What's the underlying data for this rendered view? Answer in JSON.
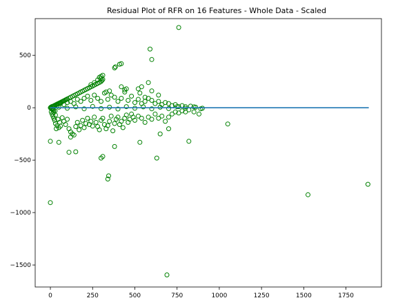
{
  "chart_data": {
    "type": "scatter",
    "title": "Residual Plot of RFR on 16 Features - Whole Data - Scaled",
    "xlabel": "",
    "ylabel": "",
    "xlim": [
      -90,
      1960
    ],
    "ylim": [
      -1710,
      850
    ],
    "x_ticks": [
      0,
      250,
      500,
      750,
      1000,
      1250,
      1500,
      1750
    ],
    "y_ticks": [
      500,
      0,
      -500,
      -1000,
      -1500
    ],
    "grid": false,
    "point_color": "#008000",
    "line_color": "#1f77b4",
    "reference_line": {
      "y": 0,
      "x_start": 0,
      "x_end": 1885
    },
    "series": [
      {
        "values": [
          [
            0,
            0
          ],
          [
            3,
            5
          ],
          [
            5,
            -8
          ],
          [
            8,
            10
          ],
          [
            10,
            -15
          ],
          [
            12,
            12
          ],
          [
            15,
            -20
          ],
          [
            18,
            15
          ],
          [
            20,
            -25
          ],
          [
            22,
            18
          ],
          [
            25,
            22
          ],
          [
            28,
            -30
          ],
          [
            30,
            25
          ],
          [
            35,
            30
          ],
          [
            40,
            34
          ],
          [
            45,
            38
          ],
          [
            50,
            42
          ],
          [
            55,
            46
          ],
          [
            60,
            50
          ],
          [
            65,
            54
          ],
          [
            70,
            58
          ],
          [
            75,
            62
          ],
          [
            80,
            66
          ],
          [
            85,
            70
          ],
          [
            90,
            75
          ],
          [
            95,
            79
          ],
          [
            100,
            83
          ],
          [
            110,
            91
          ],
          [
            120,
            100
          ],
          [
            130,
            108
          ],
          [
            140,
            116
          ],
          [
            150,
            125
          ],
          [
            160,
            133
          ],
          [
            170,
            141
          ],
          [
            180,
            150
          ],
          [
            190,
            158
          ],
          [
            200,
            166
          ],
          [
            210,
            175
          ],
          [
            220,
            183
          ],
          [
            230,
            191
          ],
          [
            240,
            200
          ],
          [
            250,
            208
          ],
          [
            260,
            216
          ],
          [
            270,
            225
          ],
          [
            280,
            233
          ],
          [
            290,
            241
          ],
          [
            300,
            250
          ],
          [
            305,
            260
          ],
          [
            310,
            270
          ],
          [
            300,
            280
          ],
          [
            290,
            290
          ],
          [
            300,
            300
          ],
          [
            310,
            310
          ],
          [
            240,
            220
          ],
          [
            260,
            240
          ],
          [
            280,
            265
          ],
          [
            5,
            -40
          ],
          [
            10,
            -60
          ],
          [
            15,
            -80
          ],
          [
            20,
            -100
          ],
          [
            25,
            -120
          ],
          [
            30,
            -150
          ],
          [
            40,
            -170
          ],
          [
            50,
            -190
          ],
          [
            35,
            -200
          ],
          [
            60,
            -175
          ],
          [
            20,
            -45
          ],
          [
            30,
            -70
          ],
          [
            45,
            -110
          ],
          [
            55,
            -140
          ],
          [
            70,
            -95
          ],
          [
            80,
            -130
          ],
          [
            90,
            -160
          ],
          [
            100,
            -110
          ],
          [
            110,
            -200
          ],
          [
            120,
            -230
          ],
          [
            130,
            -250
          ],
          [
            140,
            -260
          ],
          [
            150,
            -180
          ],
          [
            160,
            -140
          ],
          [
            170,
            -210
          ],
          [
            180,
            -170
          ],
          [
            190,
            -120
          ],
          [
            200,
            -190
          ],
          [
            210,
            -150
          ],
          [
            220,
            -100
          ],
          [
            230,
            -160
          ],
          [
            240,
            -130
          ],
          [
            250,
            -175
          ],
          [
            260,
            -90
          ],
          [
            270,
            -140
          ],
          [
            280,
            -180
          ],
          [
            290,
            -210
          ],
          [
            300,
            -120
          ],
          [
            310,
            -100
          ],
          [
            320,
            -160
          ],
          [
            330,
            -200
          ],
          [
            340,
            -170
          ],
          [
            350,
            -130
          ],
          [
            360,
            -80
          ],
          [
            370,
            -220
          ],
          [
            380,
            -150
          ],
          [
            390,
            -110
          ],
          [
            400,
            -90
          ],
          [
            410,
            -160
          ],
          [
            420,
            -130
          ],
          [
            430,
            -190
          ],
          [
            440,
            -100
          ],
          [
            450,
            -70
          ],
          [
            460,
            -140
          ],
          [
            470,
            -110
          ],
          [
            480,
            -60
          ],
          [
            490,
            -90
          ],
          [
            500,
            -120
          ],
          [
            520,
            -80
          ],
          [
            540,
            -100
          ],
          [
            560,
            -140
          ],
          [
            580,
            -90
          ],
          [
            600,
            -110
          ],
          [
            620,
            -60
          ],
          [
            640,
            -100
          ],
          [
            660,
            -80
          ],
          [
            680,
            -130
          ],
          [
            700,
            -90
          ],
          [
            720,
            -60
          ],
          [
            740,
            -40
          ],
          [
            760,
            -50
          ],
          [
            780,
            -30
          ],
          [
            800,
            -40
          ],
          [
            820,
            -20
          ],
          [
            850,
            -40
          ],
          [
            880,
            -60
          ],
          [
            40,
            20
          ],
          [
            60,
            40
          ],
          [
            80,
            30
          ],
          [
            100,
            50
          ],
          [
            120,
            60
          ],
          [
            140,
            40
          ],
          [
            160,
            80
          ],
          [
            180,
            60
          ],
          [
            200,
            90
          ],
          [
            220,
            110
          ],
          [
            240,
            70
          ],
          [
            260,
            120
          ],
          [
            280,
            90
          ],
          [
            300,
            60
          ],
          [
            320,
            140
          ],
          [
            340,
            80
          ],
          [
            360,
            120
          ],
          [
            380,
            100
          ],
          [
            400,
            60
          ],
          [
            420,
            90
          ],
          [
            440,
            150
          ],
          [
            460,
            70
          ],
          [
            480,
            110
          ],
          [
            500,
            50
          ],
          [
            520,
            80
          ],
          [
            540,
            40
          ],
          [
            560,
            60
          ],
          [
            580,
            90
          ],
          [
            600,
            70
          ],
          [
            620,
            40
          ],
          [
            640,
            60
          ],
          [
            660,
            30
          ],
          [
            680,
            50
          ],
          [
            700,
            40
          ],
          [
            720,
            20
          ],
          [
            740,
            30
          ],
          [
            760,
            10
          ],
          [
            780,
            20
          ],
          [
            800,
            10
          ],
          [
            830,
            15
          ],
          [
            860,
            5
          ],
          [
            890,
            -10
          ],
          [
            50,
            5
          ],
          [
            100,
            -5
          ],
          [
            150,
            8
          ],
          [
            200,
            -10
          ],
          [
            250,
            12
          ],
          [
            300,
            -8
          ],
          [
            350,
            5
          ],
          [
            400,
            -12
          ],
          [
            450,
            10
          ],
          [
            500,
            -5
          ],
          [
            550,
            8
          ],
          [
            600,
            -10
          ],
          [
            650,
            5
          ],
          [
            700,
            -8
          ],
          [
            750,
            10
          ],
          [
            800,
            -5
          ],
          [
            850,
            8
          ],
          [
            900,
            -5
          ],
          [
            380,
            380
          ],
          [
            385,
            390
          ],
          [
            410,
            415
          ],
          [
            420,
            420
          ],
          [
            590,
            560
          ],
          [
            600,
            460
          ],
          [
            760,
            765
          ],
          [
            520,
            180
          ],
          [
            540,
            200
          ],
          [
            580,
            240
          ],
          [
            600,
            160
          ],
          [
            640,
            120
          ],
          [
            560,
            100
          ],
          [
            530,
            140
          ],
          [
            450,
            180
          ],
          [
            420,
            200
          ],
          [
            440,
            170
          ],
          [
            350,
            160
          ],
          [
            330,
            150
          ],
          [
            0,
            -320
          ],
          [
            0,
            -905
          ],
          [
            50,
            -330
          ],
          [
            110,
            -425
          ],
          [
            150,
            -420
          ],
          [
            300,
            -480
          ],
          [
            310,
            -465
          ],
          [
            340,
            -680
          ],
          [
            345,
            -650
          ],
          [
            380,
            -370
          ],
          [
            530,
            -330
          ],
          [
            630,
            -480
          ],
          [
            690,
            -1595
          ],
          [
            820,
            -320
          ],
          [
            1050,
            -155
          ],
          [
            1525,
            -830
          ],
          [
            1880,
            -730
          ],
          [
            650,
            -250
          ],
          [
            700,
            -200
          ],
          [
            120,
            -280
          ]
        ]
      }
    ]
  }
}
